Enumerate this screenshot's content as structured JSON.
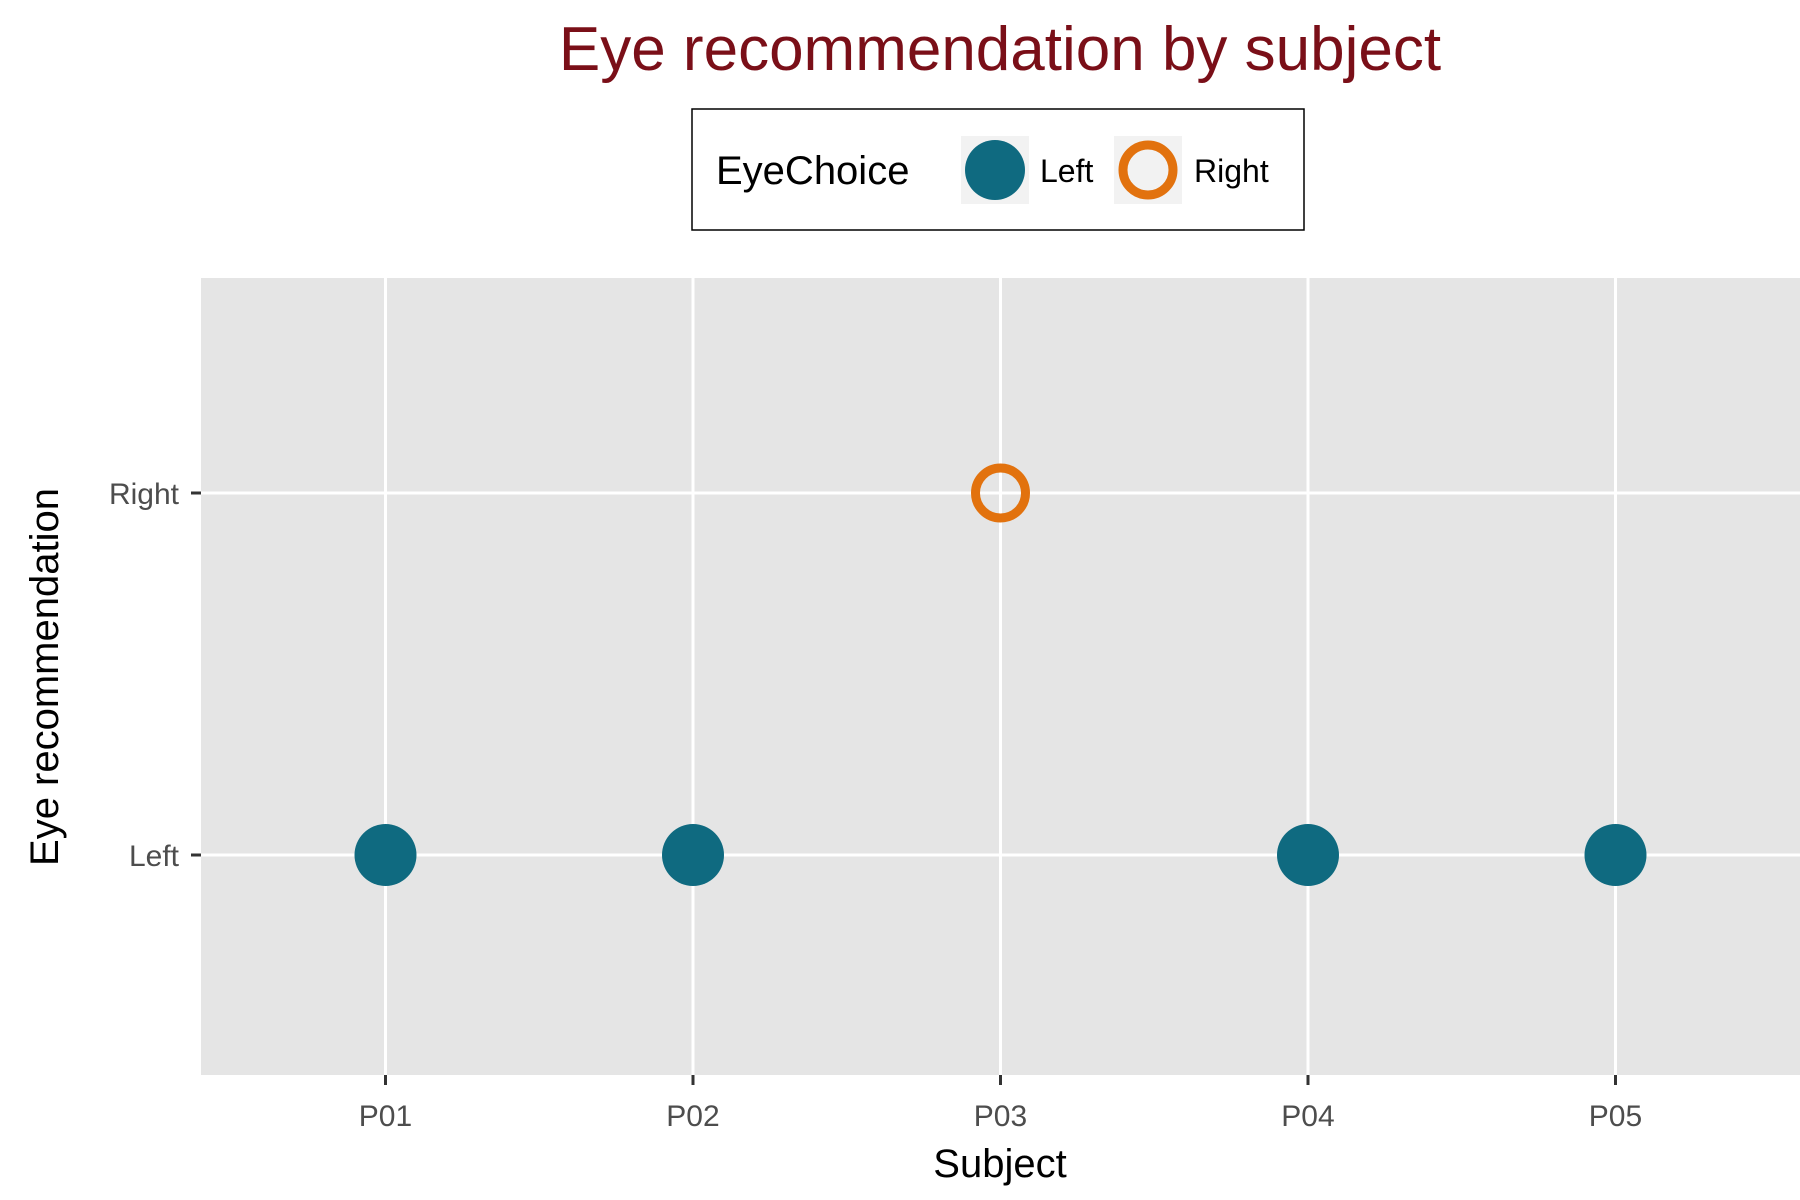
{
  "chart_data": {
    "type": "scatter",
    "title": "Eye recommendation by subject",
    "xlabel": "Subject",
    "ylabel": "Eye recommendation",
    "x_categories": [
      "P01",
      "P02",
      "P03",
      "P04",
      "P05"
    ],
    "y_categories": [
      "Left",
      "Right"
    ],
    "points": [
      {
        "x": "P01",
        "y": "Left",
        "group": "Left"
      },
      {
        "x": "P02",
        "y": "Left",
        "group": "Left"
      },
      {
        "x": "P03",
        "y": "Right",
        "group": "Right"
      },
      {
        "x": "P04",
        "y": "Left",
        "group": "Left"
      },
      {
        "x": "P05",
        "y": "Left",
        "group": "Left"
      }
    ],
    "legend": {
      "title": "EyeChoice",
      "position": "top",
      "entries": [
        {
          "label": "Left",
          "color": "#0f6a80",
          "shape": "filled-circle"
        },
        {
          "label": "Right",
          "color": "#e2720e",
          "shape": "open-circle"
        }
      ]
    },
    "grid": true
  },
  "colors": {
    "title": "#7a0f18",
    "panel_background": "#e5e5e5",
    "gridline": "#ffffff",
    "left": "#0f6a80",
    "right": "#e2720e",
    "legend_key_background": "#f2f2f2"
  }
}
